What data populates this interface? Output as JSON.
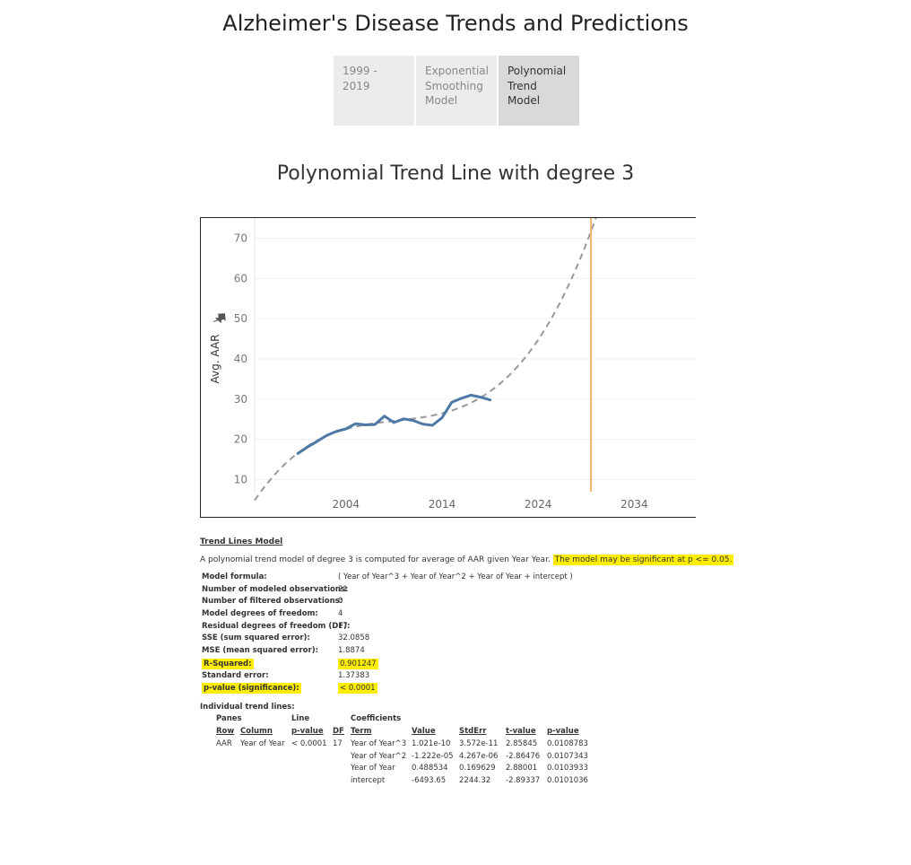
{
  "header": {
    "title": "Alzheimer's Disease Trends and Predictions"
  },
  "tabs": [
    {
      "line1": "1999 - 2019",
      "line2": "",
      "line3": "",
      "active": false
    },
    {
      "line1": "Exponential",
      "line2": "Smoothing",
      "line3": "Model",
      "active": false
    },
    {
      "line1": "Polynomial",
      "line2": "Trend Model",
      "line3": "",
      "active": true
    }
  ],
  "chart_title": "Polynomial Trend Line with degree 3",
  "chart_data": {
    "type": "line",
    "ylabel": "Avg. AAR",
    "xlabel": "",
    "x_ticks": [
      2004,
      2014,
      2024,
      2034
    ],
    "y_ticks": [
      10,
      20,
      30,
      40,
      50,
      60,
      70
    ],
    "xlim": [
      1994.5,
      2040.5
    ],
    "ylim": [
      7,
      75
    ],
    "series": [
      {
        "x": [
          1999,
          2000,
          2001,
          2002,
          2003,
          2004,
          2005,
          2006,
          2007,
          2008,
          2009,
          2010,
          2011,
          2012,
          2013,
          2014,
          2015,
          2016,
          2017,
          2018,
          2019
        ],
        "values": [
          16.5,
          18.1,
          19.5,
          21.0,
          22.0,
          22.6,
          23.9,
          23.6,
          23.7,
          25.8,
          24.2,
          25.1,
          24.7,
          23.8,
          23.5,
          25.4,
          29.2,
          30.2,
          31.0,
          30.5,
          29.8
        ]
      }
    ],
    "trend_line": {
      "degree": 3,
      "style": "dashed",
      "color": "#999999"
    },
    "reference_line_x": 2029.5,
    "colors": {
      "series": "#4e79a7",
      "reference": "#f2b46f",
      "trend": "#999999"
    }
  },
  "stats": {
    "heading": "Trend Lines Model",
    "desc_plain": "A polynomial trend model of degree 3 is computed for average of AAR given Year Year. ",
    "desc_highlight": "The model may be significant at p <= 0.05.",
    "rows": [
      {
        "k": "Model formula:",
        "v": "( Year of Year^3 + Year of Year^2 + Year of Year + intercept )",
        "hl": false
      },
      {
        "k": "Number of modeled observations:",
        "v": "21",
        "hl": false
      },
      {
        "k": "Number of filtered observations:",
        "v": "0",
        "hl": false
      },
      {
        "k": "Model degrees of freedom:",
        "v": "4",
        "hl": false
      },
      {
        "k": "Residual degrees of freedom (DF):",
        "v": "17",
        "hl": false
      },
      {
        "k": "SSE (sum squared error):",
        "v": "32.0858",
        "hl": false
      },
      {
        "k": "MSE (mean squared error):",
        "v": "1.8874",
        "hl": false
      },
      {
        "k": "R-Squared:",
        "v": "0.901247",
        "hl": true
      },
      {
        "k": "Standard error:",
        "v": "1.37383",
        "hl": false
      },
      {
        "k": "p-value (significance):",
        "v": "< 0.0001",
        "hl": true
      }
    ],
    "individual": {
      "label": "Individual trend lines:",
      "group_panes": "Panes",
      "group_line": "Line",
      "group_coef": "Coefficients",
      "h_row": "Row",
      "h_column": "Column",
      "h_pvalue": "p-value",
      "h_df": "DF",
      "h_term": "Term",
      "h_value": "Value",
      "h_stderr": "StdErr",
      "h_tvalue": "t-value",
      "h_pvalue2": "p-value",
      "row": "AAR",
      "column": "Year of Year",
      "line_p": "< 0.0001",
      "df": "17",
      "terms": [
        {
          "term": "Year of Year^3",
          "value": "1.021e-10",
          "stderr": "3.572e-11",
          "t": "2.85845",
          "p": "0.0108783"
        },
        {
          "term": "Year of Year^2",
          "value": "-1.222e-05",
          "stderr": "4.267e-06",
          "t": "-2.86476",
          "p": "0.0107343"
        },
        {
          "term": "Year of Year",
          "value": "0.488534",
          "stderr": "0.169629",
          "t": "2.88001",
          "p": "0.0103933"
        },
        {
          "term": "intercept",
          "value": "-6493.65",
          "stderr": "2244.32",
          "t": "-2.89337",
          "p": "0.0101036"
        }
      ]
    }
  }
}
